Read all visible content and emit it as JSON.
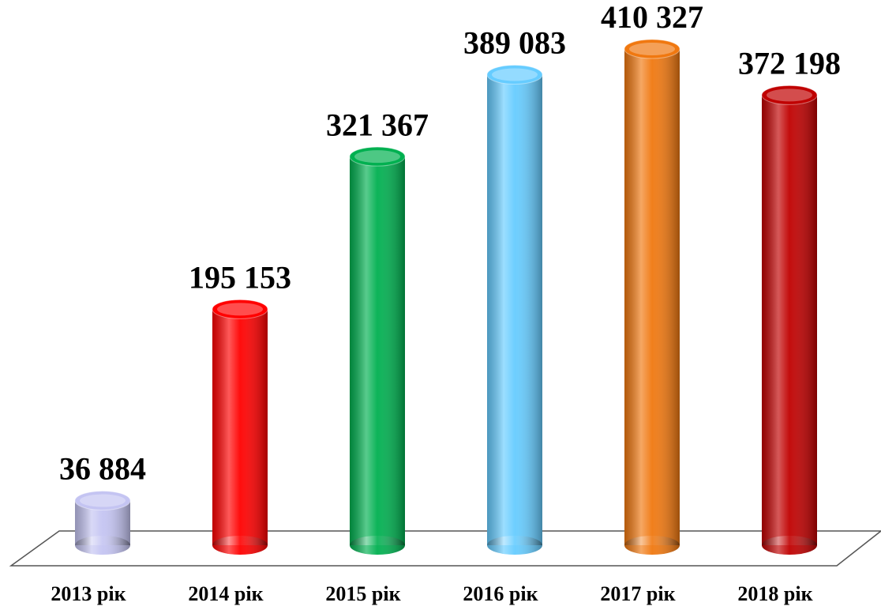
{
  "chart_data": {
    "type": "bar",
    "categories": [
      "2013 рік",
      "2014 рік",
      "2015 рік",
      "2016 рік",
      "2017 рік",
      "2018 рік"
    ],
    "values": [
      36884,
      195153,
      321367,
      389083,
      410327,
      372198
    ],
    "value_labels": [
      "36 884",
      "195 153",
      "321 367",
      "389 083",
      "410 327",
      "372 198"
    ],
    "colors": [
      "#c4c4f2",
      "#ff0000",
      "#00b050",
      "#66ccff",
      "#f07810",
      "#c00000"
    ]
  }
}
